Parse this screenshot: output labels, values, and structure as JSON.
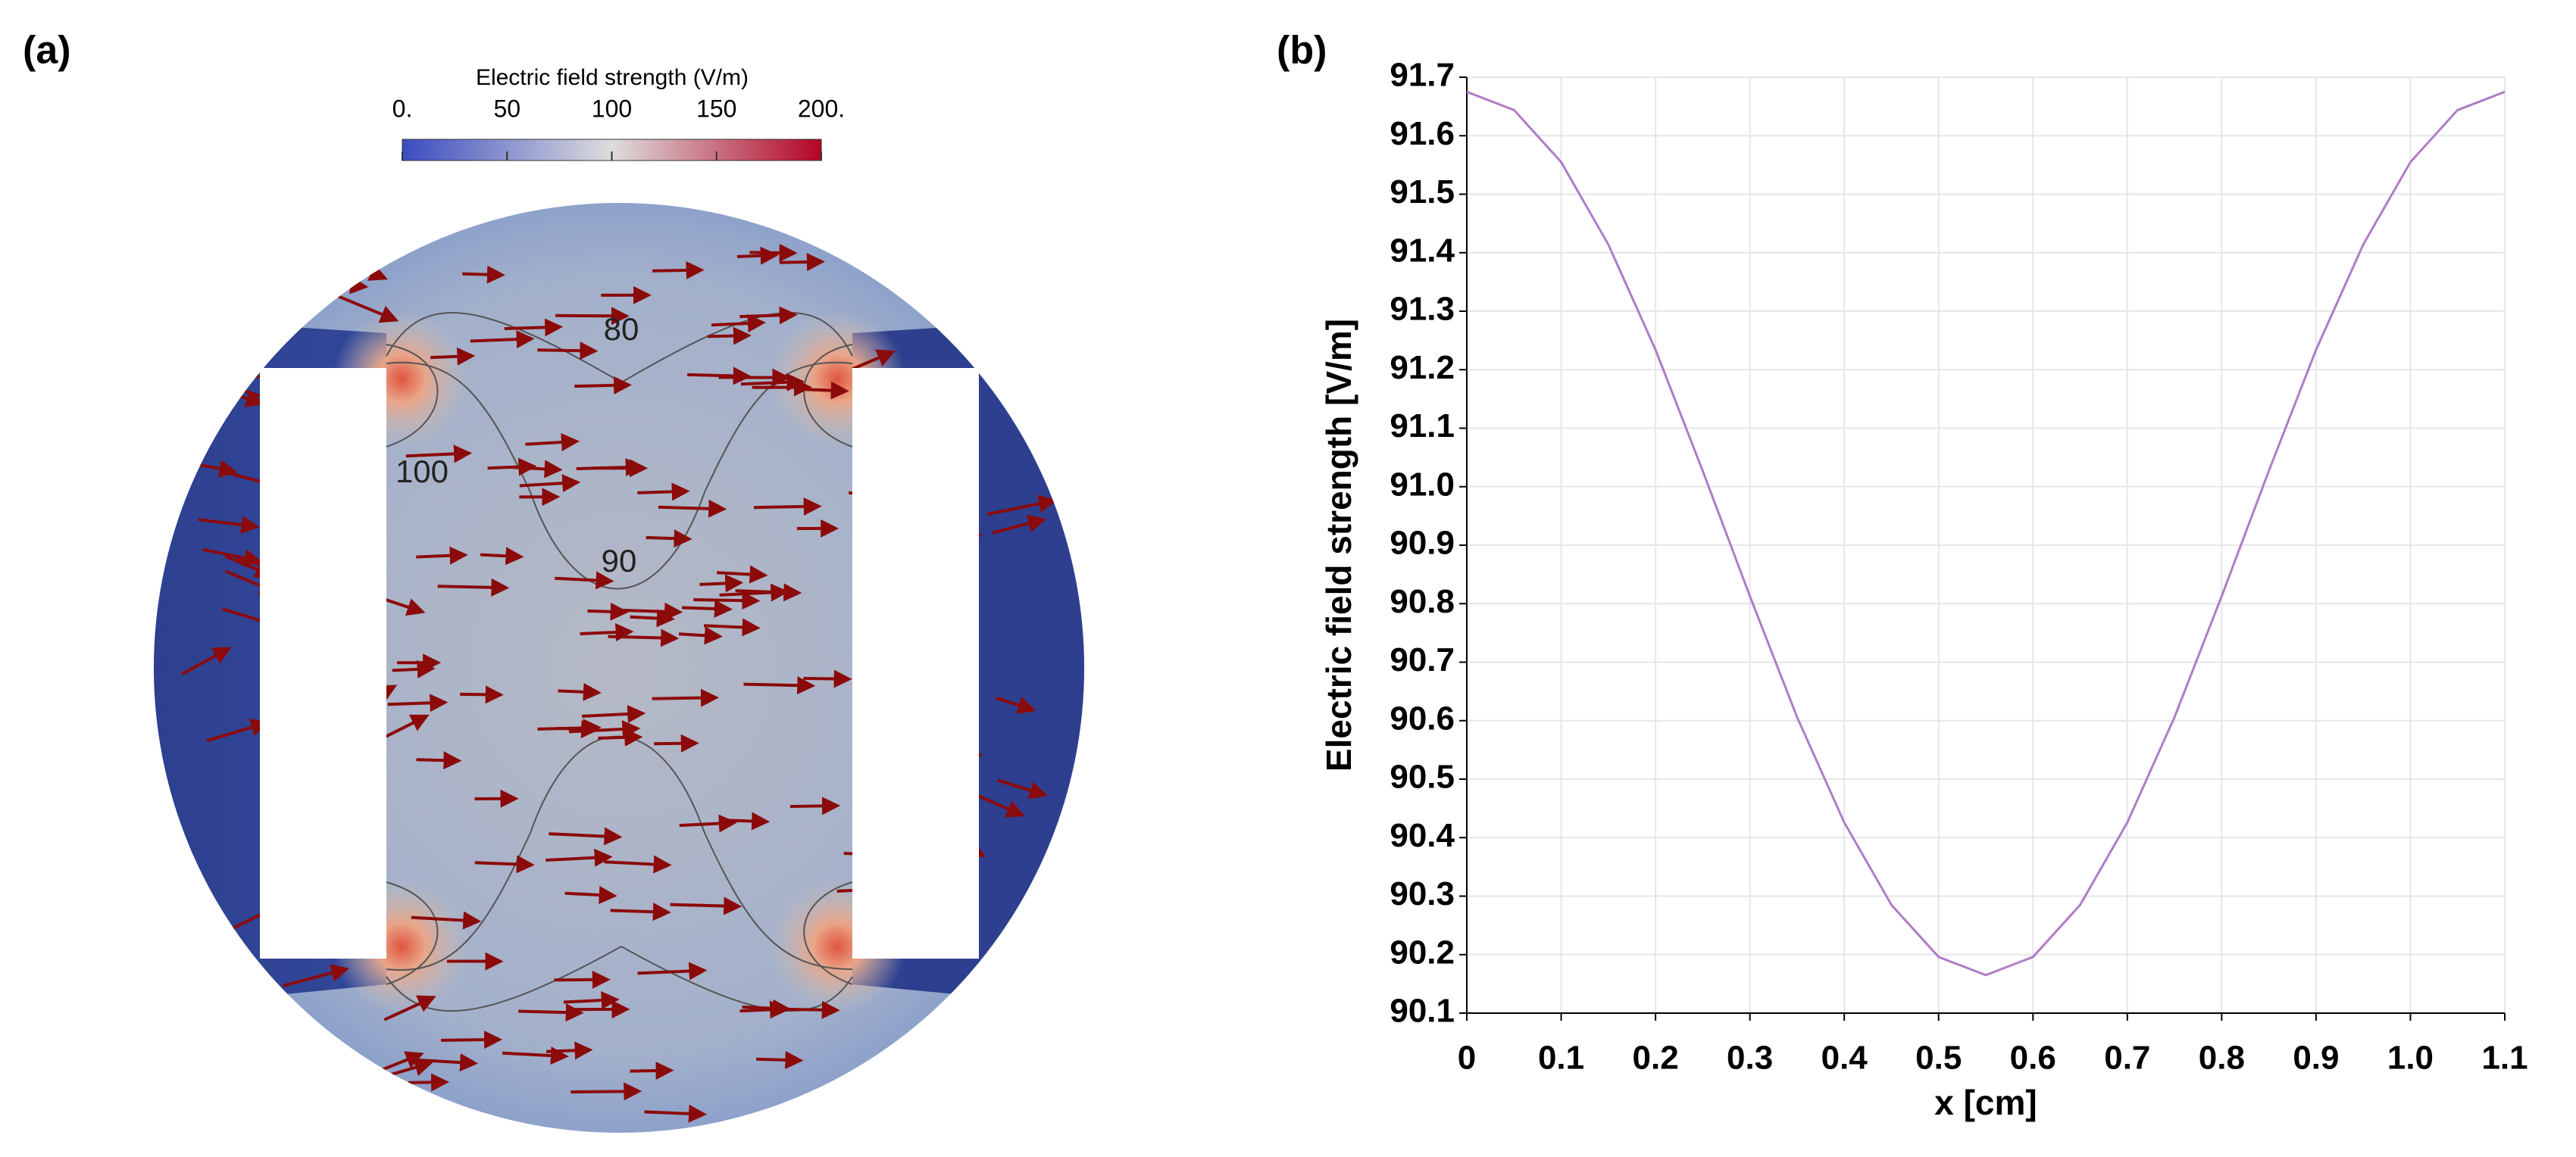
{
  "chart_data": [
    {
      "type": "field",
      "panel_label": "(a)",
      "colorbar_title": "Electric field strength (V/m)",
      "clim": [
        0,
        200
      ],
      "colorbar_ticks": [
        {
          "value": 0,
          "label": "0."
        },
        50,
        100,
        150,
        {
          "value": 200,
          "label": "200."
        }
      ],
      "colors": [
        "#3b4cc0",
        "#dddddd",
        "#b40426"
      ],
      "contour_levels": [
        80,
        100,
        90
      ]
    },
    {
      "type": "line",
      "panel_label": "(b)",
      "xlabel": "x [cm]",
      "ylabel": "Electric field strength [V/m]",
      "x": [
        0,
        0.05,
        0.1,
        0.15,
        0.2,
        0.25,
        0.3,
        0.35,
        0.4,
        0.45,
        0.5,
        0.55,
        0.6,
        0.65,
        0.7,
        0.75,
        0.8,
        0.85,
        0.9,
        0.95,
        1.0,
        1.05,
        1.1
      ],
      "values": [
        91.675,
        91.644,
        91.555,
        91.414,
        91.234,
        91.027,
        90.813,
        90.606,
        90.426,
        90.285,
        90.196,
        90.165,
        90.196,
        90.285,
        90.426,
        90.606,
        90.813,
        91.027,
        91.234,
        91.414,
        91.555,
        91.644,
        91.675
      ],
      "color": "#b07cc6",
      "xlim": [
        0,
        1.1
      ],
      "xticks": [
        0,
        0.1,
        0.2,
        0.3,
        0.4,
        0.5,
        0.6,
        0.7,
        0.8,
        0.9,
        {
          "value": 1,
          "label": "1.0"
        },
        1.1
      ],
      "ylim": [
        90.1,
        91.7
      ],
      "yticks": [
        90.1,
        90.2,
        90.3,
        90.4,
        90.5,
        90.6,
        90.7,
        90.8,
        90.9,
        {
          "value": 91,
          "label": "91.0"
        },
        91.1,
        91.2,
        91.3,
        91.4,
        91.5,
        91.6,
        91.7
      ],
      "grid": true
    }
  ]
}
